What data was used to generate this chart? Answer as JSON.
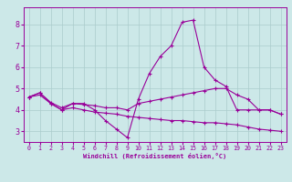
{
  "xlabel": "Windchill (Refroidissement éolien,°C)",
  "ylabel": "",
  "bg_color": "#cce8e8",
  "grid_color": "#aacccc",
  "line_color": "#990099",
  "xlim": [
    -0.5,
    23.5
  ],
  "ylim": [
    2.5,
    8.8
  ],
  "xticks": [
    0,
    1,
    2,
    3,
    4,
    5,
    6,
    7,
    8,
    9,
    10,
    11,
    12,
    13,
    14,
    15,
    16,
    17,
    18,
    19,
    20,
    21,
    22,
    23
  ],
  "yticks": [
    3,
    4,
    5,
    6,
    7,
    8
  ],
  "series": [
    {
      "x": [
        0,
        1,
        2,
        3,
        4,
        5,
        6,
        7,
        8,
        9,
        10,
        11,
        12,
        13,
        14,
        15,
        16,
        17,
        18,
        19,
        20,
        21,
        22,
        23
      ],
      "y": [
        4.6,
        4.8,
        4.3,
        4.0,
        4.3,
        4.3,
        4.0,
        3.5,
        3.1,
        2.7,
        4.5,
        5.7,
        6.5,
        7.0,
        8.1,
        8.2,
        6.0,
        5.4,
        5.1,
        4.0,
        4.0,
        4.0,
        4.0,
        3.8
      ]
    },
    {
      "x": [
        0,
        1,
        2,
        3,
        4,
        5,
        6,
        7,
        8,
        9,
        10,
        11,
        12,
        13,
        14,
        15,
        16,
        17,
        18,
        19,
        20,
        21,
        22,
        23
      ],
      "y": [
        4.6,
        4.8,
        4.35,
        4.1,
        4.3,
        4.25,
        4.2,
        4.1,
        4.1,
        4.0,
        4.3,
        4.4,
        4.5,
        4.6,
        4.7,
        4.8,
        4.9,
        5.0,
        5.0,
        4.7,
        4.5,
        4.0,
        4.0,
        3.8
      ]
    },
    {
      "x": [
        0,
        1,
        2,
        3,
        4,
        5,
        6,
        7,
        8,
        9,
        10,
        11,
        12,
        13,
        14,
        15,
        16,
        17,
        18,
        19,
        20,
        21,
        22,
        23
      ],
      "y": [
        4.6,
        4.7,
        4.3,
        4.0,
        4.1,
        4.0,
        3.9,
        3.85,
        3.8,
        3.7,
        3.65,
        3.6,
        3.55,
        3.5,
        3.5,
        3.45,
        3.4,
        3.4,
        3.35,
        3.3,
        3.2,
        3.1,
        3.05,
        3.0
      ]
    }
  ]
}
